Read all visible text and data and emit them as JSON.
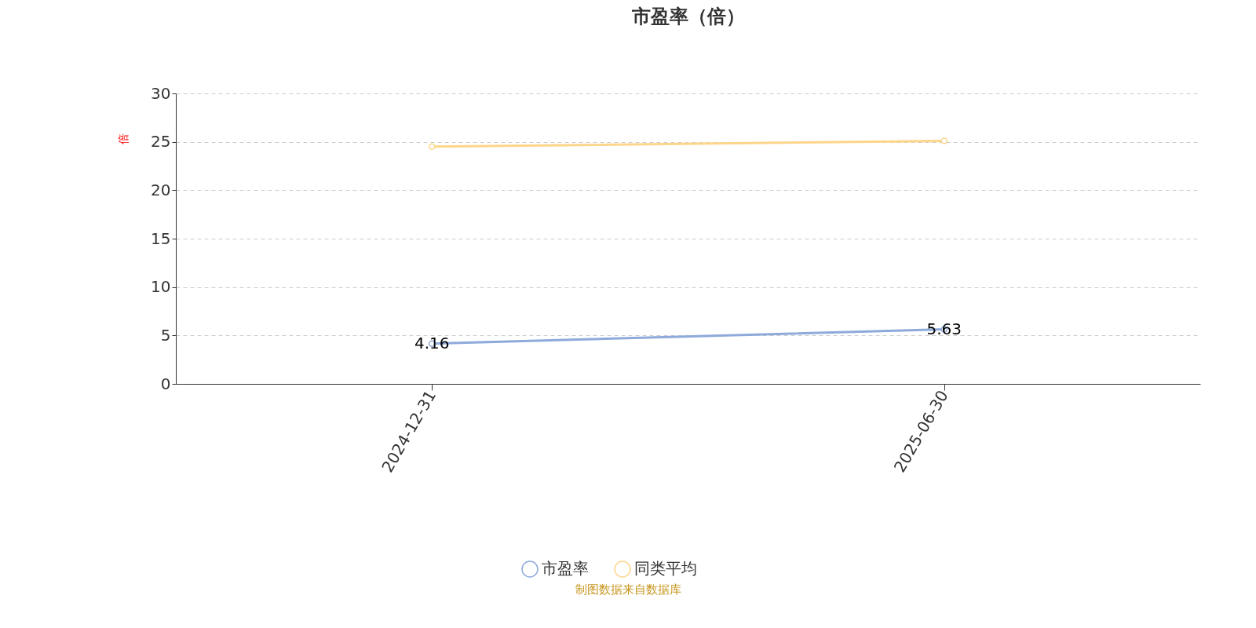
{
  "chart_data": {
    "type": "line",
    "title": "市盈率（倍）",
    "ylabel": "倍",
    "categories": [
      "2024-12-31",
      "2025-06-30"
    ],
    "series": [
      {
        "name": "市盈率",
        "color": "#8eaadb",
        "values": [
          4.16,
          5.63
        ],
        "value_labels": [
          "4.16",
          "5.63"
        ]
      },
      {
        "name": "同类平均",
        "color": "#fdd58b",
        "values": [
          24.5,
          25.1
        ]
      }
    ],
    "ylim": [
      0,
      30
    ],
    "yticks": [
      0,
      5,
      10,
      15,
      20,
      25,
      30
    ],
    "grid": "y",
    "legend": "bottom",
    "marker": "circle",
    "line_style": "solid",
    "annotations": [
      "制图数据来自数据库"
    ]
  }
}
